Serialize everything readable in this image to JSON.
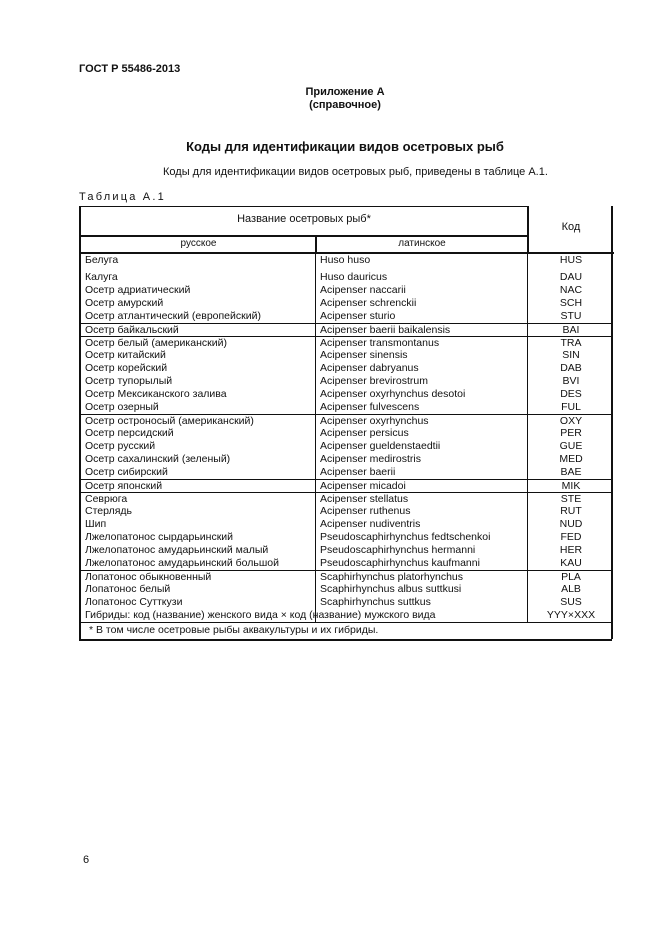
{
  "standard": "ГОСТ Р 55486-2013",
  "appendix": {
    "title": "Приложение А",
    "type": "(справочное)"
  },
  "heading": "Коды для идентификации видов осетровых рыб",
  "intro": "Коды для идентификации видов осетровых рыб, приведены в таблице А.1.",
  "table": {
    "caption": "Таблица А.1",
    "header": {
      "name": "Название осетровых рыб*",
      "russian": "русское",
      "latin": "латинское",
      "code": "Код"
    },
    "rows": [
      {
        "ru": "Белуга",
        "la": "Huso huso",
        "code": "HUS"
      },
      {
        "ru": "Калуга",
        "la": "Huso dauricus",
        "code": "DAU"
      },
      {
        "ru": "Осетр адриатический",
        "la": "Acipenser naccarii",
        "code": "NAC"
      },
      {
        "ru": "Осетр амурский",
        "la": "Acipenser schrenckii",
        "code": "SCH"
      },
      {
        "ru": "Осетр атлантический (европейский)",
        "la": "Acipenser sturio",
        "code": "STU"
      },
      {
        "ru": "Осетр байкальский",
        "la": "Acipenser baerii baikalensis",
        "code": "BAI"
      },
      {
        "ru": "Осетр белый (американский)",
        "la": "Acipenser transmontanus",
        "code": "TRA"
      },
      {
        "ru": "Осетр китайский",
        "la": "Acipenser sinensis",
        "code": "SIN"
      },
      {
        "ru": "Осетр корейский",
        "la": "Acipenser dabryanus",
        "code": "DAB"
      },
      {
        "ru": "Осетр тупорылый",
        "la": "Acipenser brevirostrum",
        "code": "BVI"
      },
      {
        "ru": "Осетр Мексиканского залива",
        "la": "Acipenser oxyrhynchus desotoi",
        "code": "DES"
      },
      {
        "ru": "Осетр озерный",
        "la": "Acipenser fulvescens",
        "code": "FUL"
      },
      {
        "ru": "Осетр остроносый (американский)",
        "la": "Acipenser oxyrhynchus",
        "code": "OXY"
      },
      {
        "ru": "Осетр персидский",
        "la": "Acipenser persicus",
        "code": "PER"
      },
      {
        "ru": "Осетр русский",
        "la": "Acipenser gueldenstaedtii",
        "code": "GUE"
      },
      {
        "ru": "Осетр сахалинский (зеленый)",
        "la": "Acipenser medirostris",
        "code": "MED"
      },
      {
        "ru": "Осетр сибирский",
        "la": "Acipenser baerii",
        "code": "BAE"
      },
      {
        "ru": "Осетр японский",
        "la": "Acipenser micadoi",
        "code": "MIK"
      },
      {
        "ru": "Севрюга",
        "la": "Acipenser stellatus",
        "code": "STE"
      },
      {
        "ru": "Стерлядь",
        "la": "Acipenser ruthenus",
        "code": "RUT"
      },
      {
        "ru": "Шип",
        "la": "Acipenser nudiventris",
        "code": "NUD"
      },
      {
        "ru": "Лжелопатонос сырдарьинский",
        "la": "Pseudoscaphirhynchus fedtschenkoi",
        "code": "FED"
      },
      {
        "ru": "Лжелопатонос амударьинский малый",
        "la": "Pseudoscaphirhynchus hermanni",
        "code": "HER"
      },
      {
        "ru": "Лжелопатонос амударьинский большой",
        "la": "Pseudoscaphirhynchus kaufmanni",
        "code": "KAU"
      },
      {
        "ru": "Лопатонос обыкновенный",
        "la": "Scaphirhynchus platorhynchus",
        "code": "PLA"
      },
      {
        "ru": "Лопатонос белый",
        "la": "Scaphirhynchus albus suttkusi",
        "code": "ALB"
      },
      {
        "ru": "Лопатонос Сутткузи",
        "la": "Scaphirhynchus suttkus",
        "code": "SUS"
      }
    ],
    "hybrid": {
      "text": "Гибриды: код (название) женского вида × код (название) мужского вида",
      "code": "YYY×XXX"
    },
    "footnote": "* В том числе осетровые рыбы аквакультуры и их гибриды."
  },
  "page_number": "6"
}
